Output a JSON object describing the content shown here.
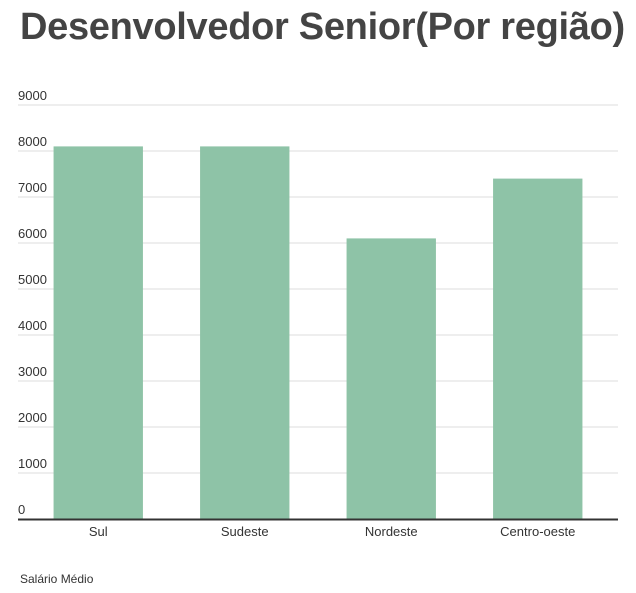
{
  "chart_data": {
    "type": "bar",
    "title": "Desenvolvedor Senior(Por região)",
    "xlabel": "",
    "ylabel": "",
    "categories": [
      "Sul",
      "Sudeste",
      "Nordeste",
      "Centro-oeste"
    ],
    "series": [
      {
        "name": "Salário Médio",
        "values": [
          8100,
          8100,
          6100,
          7400
        ],
        "color": "#8ec3a7"
      }
    ],
    "ylim": [
      0,
      9000
    ],
    "yticks": [
      0,
      1000,
      2000,
      3000,
      4000,
      5000,
      6000,
      7000,
      8000,
      9000
    ],
    "grid": true,
    "legend_position": "bottom-left"
  },
  "colors": {
    "grid": "#dddddd",
    "axis": "#333333",
    "title": "#444444"
  }
}
